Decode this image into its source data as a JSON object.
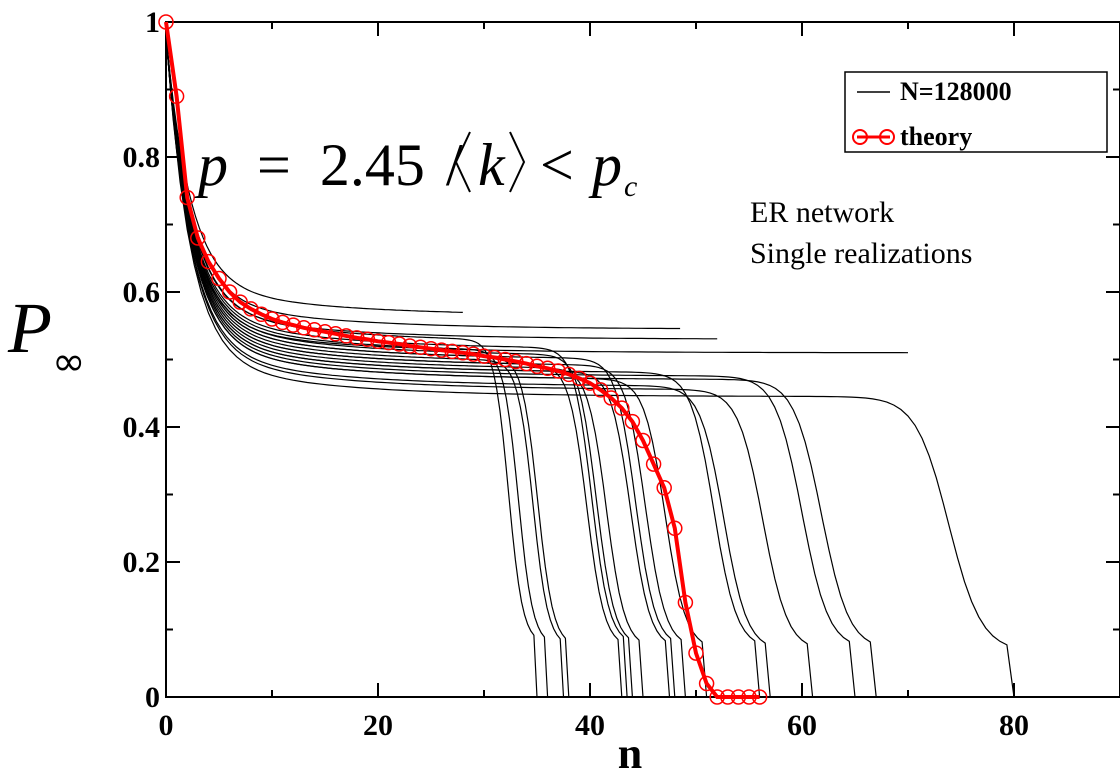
{
  "chart_data": {
    "type": "line",
    "title": "",
    "xlabel": "n",
    "ylabel": "P",
    "ylabel_subscript": "∞",
    "xlim": [
      0,
      90
    ],
    "ylim": [
      0,
      1
    ],
    "xticks": [
      0,
      20,
      40,
      60,
      80
    ],
    "yticks": [
      0,
      0.2,
      0.4,
      0.6,
      0.8,
      1
    ],
    "xtick_labels": [
      "0",
      "20",
      "40",
      "60",
      "80"
    ],
    "ytick_labels": [
      "0",
      "0.2",
      "0.4",
      "0.6",
      "0.8",
      "1"
    ],
    "legend_position": "top-right",
    "grid": false,
    "legend": [
      {
        "label": "N=128000",
        "color": "#000000",
        "style": "line"
      },
      {
        "label": "theory",
        "color": "#ff0000",
        "style": "line-circle"
      }
    ],
    "annotations": {
      "formula": {
        "p": "p",
        "eq": "=",
        "value": "2.45",
        "slash": "/",
        "k": "k",
        "lt": "<",
        "pc": "p",
        "pc_sub": "c"
      },
      "line1": "ER network",
      "line2": "Single realizations"
    },
    "series": [
      {
        "name": "theory",
        "color": "#ff0000",
        "x": [
          0,
          1,
          2,
          3,
          4,
          5,
          6,
          7,
          8,
          9,
          10,
          11,
          12,
          13,
          14,
          15,
          16,
          17,
          18,
          19,
          20,
          21,
          22,
          23,
          24,
          25,
          26,
          27,
          28,
          29,
          30,
          31,
          32,
          33,
          34,
          35,
          36,
          37,
          38,
          39,
          40,
          41,
          42,
          43,
          44,
          45,
          46,
          47,
          48,
          49,
          50,
          51,
          52,
          53,
          54,
          55,
          56
        ],
        "y": [
          1.0,
          0.89,
          0.74,
          0.68,
          0.645,
          0.62,
          0.6,
          0.585,
          0.575,
          0.567,
          0.56,
          0.555,
          0.551,
          0.547,
          0.544,
          0.541,
          0.538,
          0.535,
          0.532,
          0.53,
          0.527,
          0.525,
          0.523,
          0.52,
          0.518,
          0.516,
          0.514,
          0.512,
          0.51,
          0.508,
          0.505,
          0.503,
          0.5,
          0.497,
          0.494,
          0.49,
          0.487,
          0.483,
          0.478,
          0.472,
          0.465,
          0.455,
          0.443,
          0.428,
          0.408,
          0.38,
          0.345,
          0.31,
          0.25,
          0.14,
          0.065,
          0.02,
          0.0,
          0.0,
          0.0,
          0.0,
          0.0
        ]
      }
    ],
    "realizations": {
      "name": "N=128000",
      "color": "#000000",
      "y_start": 1.0,
      "plateau_end_y": [
        0.525,
        0.51,
        0.495,
        0.5,
        0.49,
        0.515,
        0.505,
        0.485,
        0.48,
        0.5,
        0.49,
        0.47,
        0.48,
        0.46,
        0.455,
        0.475,
        0.47,
        0.445
      ],
      "collapse_x": [
        35,
        36,
        37.5,
        38,
        43,
        43.5,
        44,
        45,
        47.5,
        48,
        49,
        51,
        56,
        57,
        61,
        65,
        67,
        80
      ],
      "plateau_levels": [
        0.565,
        0.545,
        0.53,
        0.51
      ],
      "plateau_x_ends": [
        42,
        48,
        54,
        64
      ],
      "plateau_line_end_x": [
        28,
        48.5,
        52,
        70
      ]
    }
  }
}
